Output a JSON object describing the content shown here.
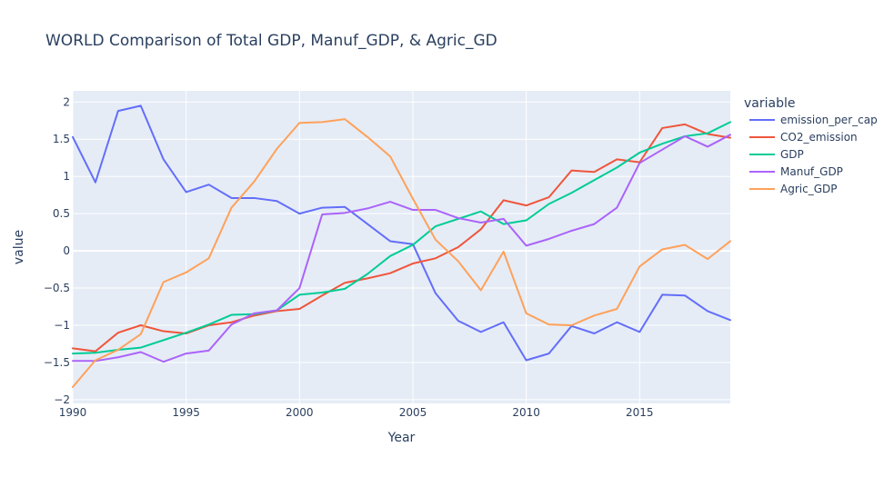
{
  "chart_data": {
    "type": "line",
    "title": "WORLD Comparison of Total GDP, Manuf_GDP, & Agric_GD",
    "xlabel": "Year",
    "ylabel": "value",
    "legend_title": "variable",
    "legend_position": "right",
    "grid": true,
    "xlim": [
      1990,
      2019
    ],
    "ylim": [
      -2.05,
      2.15
    ],
    "xticks": [
      1990,
      1995,
      2000,
      2005,
      2010,
      2015
    ],
    "yticks": [
      -2,
      -1.5,
      -1,
      -0.5,
      0,
      0.5,
      1,
      1.5,
      2
    ],
    "ytick_labels": [
      "−2",
      "−1.5",
      "−1",
      "−0.5",
      "0",
      "0.5",
      "1",
      "1.5",
      "2"
    ],
    "x": [
      1990,
      1991,
      1992,
      1993,
      1994,
      1995,
      1996,
      1997,
      1998,
      1999,
      2000,
      2001,
      2002,
      2003,
      2004,
      2005,
      2006,
      2007,
      2008,
      2009,
      2010,
      2011,
      2012,
      2013,
      2014,
      2015,
      2016,
      2017,
      2018,
      2019
    ],
    "series": [
      {
        "name": "emission_per_cap",
        "color": "#636efa",
        "values": [
          1.53,
          0.92,
          1.88,
          1.95,
          1.23,
          0.79,
          0.89,
          0.71,
          0.71,
          0.67,
          0.5,
          0.58,
          0.59,
          0.36,
          0.13,
          0.09,
          -0.57,
          -0.94,
          -1.09,
          -0.96,
          -1.47,
          -1.38,
          -1.01,
          -1.11,
          -0.96,
          -1.09,
          -0.59,
          -0.6,
          -0.81,
          -0.93
        ]
      },
      {
        "name": "CO2_emission",
        "color": "#ef553b",
        "values": [
          -1.31,
          -1.35,
          -1.1,
          -1.0,
          -1.08,
          -1.11,
          -1.0,
          -0.96,
          -0.87,
          -0.81,
          -0.78,
          -0.6,
          -0.43,
          -0.37,
          -0.3,
          -0.17,
          -0.1,
          0.05,
          0.29,
          0.68,
          0.61,
          0.72,
          1.08,
          1.06,
          1.23,
          1.19,
          1.65,
          1.7,
          1.57,
          1.52
        ]
      },
      {
        "name": "GDP",
        "color": "#00cc96",
        "values": [
          -1.38,
          -1.37,
          -1.33,
          -1.3,
          -1.2,
          -1.1,
          -0.99,
          -0.86,
          -0.85,
          -0.8,
          -0.59,
          -0.56,
          -0.51,
          -0.31,
          -0.07,
          0.08,
          0.33,
          0.43,
          0.53,
          0.36,
          0.41,
          0.63,
          0.78,
          0.95,
          1.12,
          1.32,
          1.44,
          1.54,
          1.58,
          1.73
        ]
      },
      {
        "name": "Manuf_GDP",
        "color": "#ab63fa",
        "values": [
          -1.48,
          -1.48,
          -1.43,
          -1.36,
          -1.49,
          -1.38,
          -1.34,
          -0.99,
          -0.84,
          -0.8,
          -0.5,
          0.49,
          0.51,
          0.57,
          0.66,
          0.55,
          0.55,
          0.44,
          0.38,
          0.43,
          0.07,
          0.16,
          0.27,
          0.36,
          0.58,
          1.18,
          1.36,
          1.54,
          1.4,
          1.56
        ]
      },
      {
        "name": "Agric_GDP",
        "color": "#ffa15a",
        "values": [
          -1.83,
          -1.47,
          -1.33,
          -1.12,
          -0.42,
          -0.29,
          -0.1,
          0.58,
          0.93,
          1.37,
          1.72,
          1.73,
          1.77,
          1.53,
          1.27,
          0.7,
          0.15,
          -0.14,
          -0.53,
          -0.01,
          -0.84,
          -0.99,
          -1.0,
          -0.87,
          -0.78,
          -0.21,
          0.02,
          0.08,
          -0.11,
          0.13
        ]
      }
    ]
  }
}
